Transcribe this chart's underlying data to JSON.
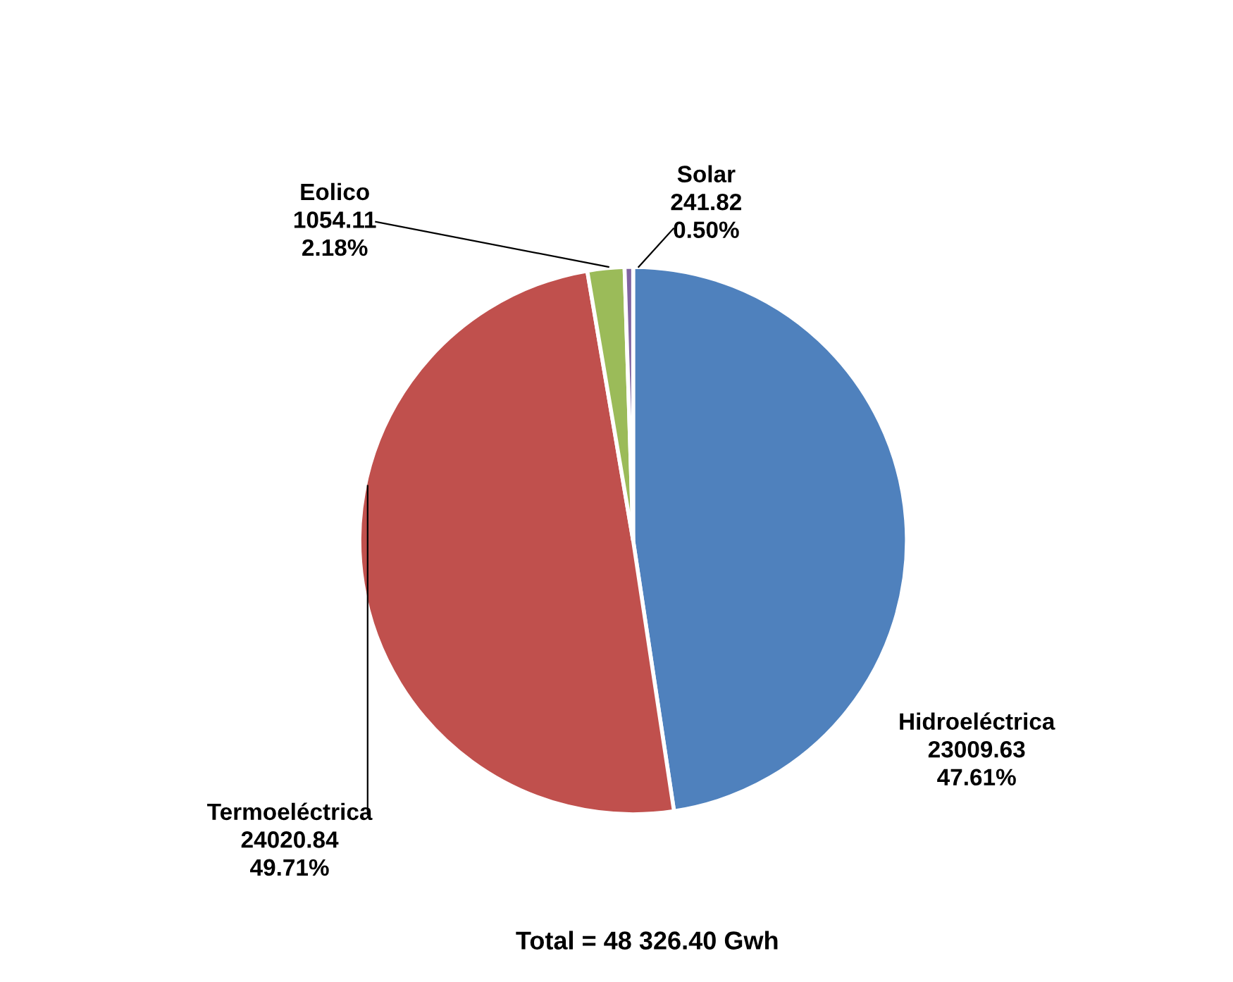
{
  "chart_data": {
    "type": "pie",
    "categories": [
      "Hidroeléctrica",
      "Termoeléctrica",
      "Eolico",
      "Solar"
    ],
    "values": [
      23009.63,
      24020.84,
      1054.11,
      241.82
    ],
    "colors": [
      "#4f81bd",
      "#c0504d",
      "#9bbb59",
      "#8064a2"
    ],
    "value_labels": [
      "23009.63\n47.61%",
      "24020.84\n49.71%",
      "1054.11\n2.18%",
      "241.82\n0.50%"
    ],
    "annotations": [
      "Total = 48 326.40 Gwh"
    ]
  }
}
